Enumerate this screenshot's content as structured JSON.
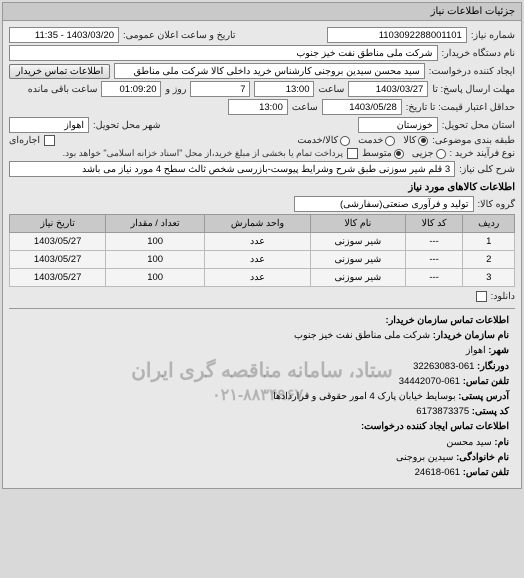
{
  "panel_header": "جزئیات اطلاعات نیاز",
  "row1": {
    "need_no_label": "شماره نیاز:",
    "need_no": "1103092288001101",
    "announce_label": "تاریخ و ساعت اعلان عمومی:",
    "announce_val": "1403/03/20 - 11:35"
  },
  "row2": {
    "buyer_org_label": "نام دستگاه خریدار:",
    "buyer_org": "شرکت ملی مناطق نفت خیز جنوب"
  },
  "row3": {
    "requester_label": "ایجاد کننده درخواست:",
    "requester": "سید محسن  سیدین بروجنی  کارشناس خرید داخلی کالا  شرکت ملی مناطق",
    "contact_btn": "اطلاعات تماس خریدار"
  },
  "deadline": {
    "send_label": "مهلت ارسال پاسخ: تا",
    "send_date": "1403/03/27",
    "time_label": "ساعت",
    "send_time": "13:00",
    "days": "7",
    "days_label": "روز و",
    "remain_time": "01:09:20",
    "remain_label": "ساعت باقی مانده"
  },
  "validity": {
    "min_label": "حداقل اعتبار قیمت: تا تاریخ:",
    "min_date": "1403/05/28",
    "time_label": "ساعت",
    "min_time": "13:00"
  },
  "location": {
    "province_label": "استان محل تحویل:",
    "province": "خوزستان",
    "city_label": "شهر محل تحویل:",
    "city": "اهواز"
  },
  "class": {
    "label": "طبقه بندی موضوعی:",
    "opts": [
      "کالا",
      "خدمت",
      "کالا/خدمت"
    ],
    "selected": 0,
    "rental_label": "اجاره‌ای"
  },
  "process": {
    "label": "نوع فرآیند خرید :",
    "opts": [
      "جزیی",
      "متوسط"
    ],
    "selected": 1,
    "note": "پرداخت تمام یا بخشی از مبلغ خرید،از محل \"اسناد خزانه اسلامی\" خواهد بود."
  },
  "subject": {
    "label": "شرح کلی نیاز:",
    "text": "3 قلم شیر سوزنی طبق شرح وشرایط پیوست-بازرسی شخص ثالث سطح 4 مورد نیاز می باشد"
  },
  "goods": {
    "header": "اطلاعات کالاهای مورد نیاز",
    "group_label": "گروه کالا:",
    "group": "تولید و فرآوری صنعتی(سفارشی)",
    "cols": [
      "ردیف",
      "کد کالا",
      "نام کالا",
      "واحد شمارش",
      "تعداد / مقدار",
      "تاریخ نیاز"
    ],
    "rows": [
      [
        "1",
        "---",
        "شیر سوزنی",
        "عدد",
        "100",
        "1403/05/27"
      ],
      [
        "2",
        "---",
        "شیر سوزنی",
        "عدد",
        "100",
        "1403/05/27"
      ],
      [
        "3",
        "---",
        "شیر سوزنی",
        "عدد",
        "100",
        "1403/05/27"
      ]
    ],
    "dl_label": "دانلود:"
  },
  "overlay": {
    "line1": "ستاد، سامانه مناقصه گری ایران",
    "line2": "۰۲۱-۸۸۳۴۹۶۷۰"
  },
  "contact": {
    "title": "اطلاعات تماس سازمان خریدار:",
    "org_label": "نام سازمان خریدار:",
    "org": "شرکت ملی مناطق نفت خیز جنوب",
    "city_label": "شهر:",
    "city": "اهواز",
    "fax_label": "دورنگار:",
    "fax": "061-32263083",
    "phone_label": "تلفن تماس:",
    "phone": "061-34442070",
    "addr_label": "آدرس پستی:",
    "addr": "بوسایط خیابان پارک 4 امور حقوقی و قراردادها",
    "zip_label": "کد پستی:",
    "zip": "6173873375",
    "req_title": "اطلاعات تماس ایجاد کننده درخواست:",
    "fname_label": "نام:",
    "fname": "سید محسن",
    "lname_label": "نام خانوادگی:",
    "lname": "سیدین بروجنی",
    "cphone_label": "تلفن تماس:",
    "cphone": "061-24618"
  }
}
